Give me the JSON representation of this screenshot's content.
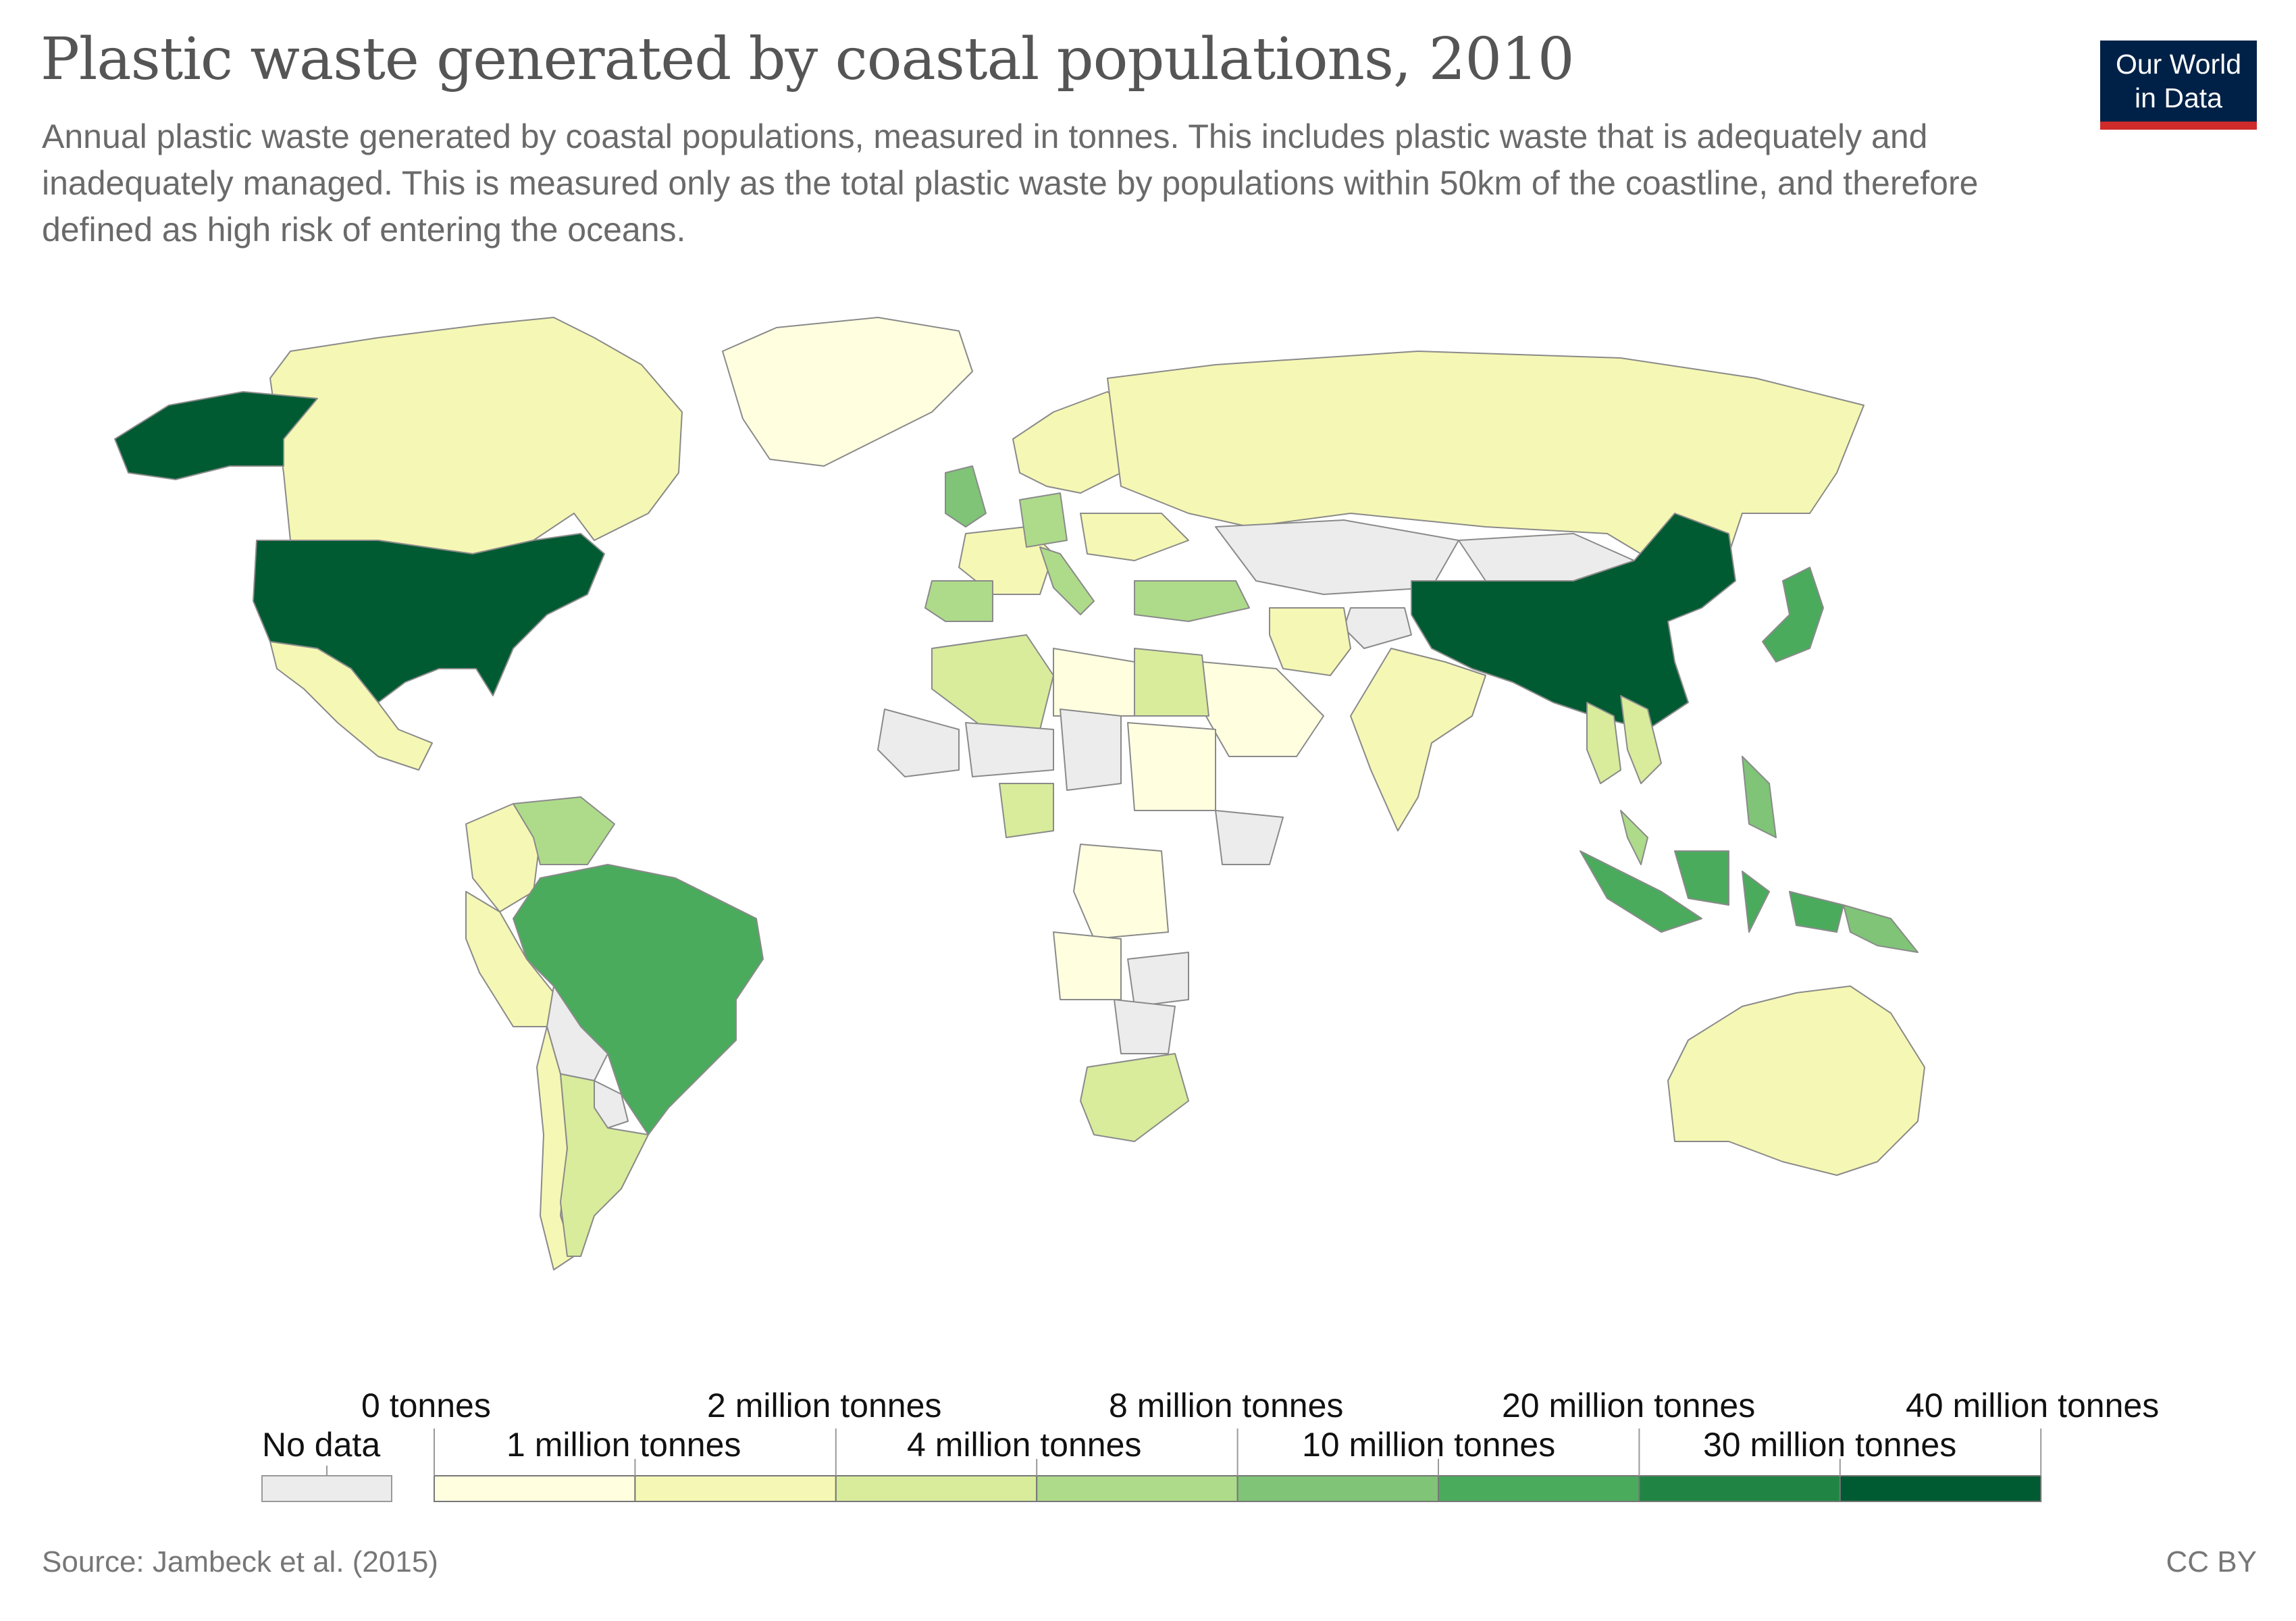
{
  "header": {
    "title": "Plastic waste generated by coastal populations, 2010",
    "subtitle": "Annual plastic waste generated by coastal populations, measured in tonnes. This includes plastic waste that is adequately and inadequately managed. This is measured only as the total plastic waste by populations within 50km of the coastline, and therefore defined as high risk of entering the oceans.",
    "logo_line1": "Our World",
    "logo_line2": "in Data"
  },
  "chart_data": {
    "type": "choropleth",
    "year": 2010,
    "unit": "tonnes",
    "no_data_label": "No data",
    "legend": {
      "labels_top": [
        "0 tonnes",
        "2 million tonnes",
        "8 million tonnes",
        "20 million tonnes",
        "40 million tonnes"
      ],
      "labels_bottom": [
        "1 million tonnes",
        "4 million tonnes",
        "10 million tonnes",
        "30 million tonnes"
      ],
      "bins": [
        0,
        1000000,
        2000000,
        4000000,
        8000000,
        10000000,
        20000000,
        30000000,
        40000000
      ],
      "colors": [
        "#ffffe0",
        "#f5f7b4",
        "#d8ec9c",
        "#aedb8a",
        "#7fc477",
        "#4aab5d",
        "#208544",
        "#005a32"
      ],
      "no_data_color": "#ececec"
    },
    "regions": [
      {
        "name": "China",
        "bin": 7
      },
      {
        "name": "United States",
        "bin": 7
      },
      {
        "name": "Alaska",
        "bin": 7
      },
      {
        "name": "Brazil",
        "bin": 5
      },
      {
        "name": "Indonesia",
        "bin": 5
      },
      {
        "name": "Japan",
        "bin": 5
      },
      {
        "name": "United Kingdom",
        "bin": 4
      },
      {
        "name": "Philippines",
        "bin": 4
      },
      {
        "name": "Papua New Guinea",
        "bin": 4
      },
      {
        "name": "Venezuela",
        "bin": 3
      },
      {
        "name": "Germany",
        "bin": 3
      },
      {
        "name": "Spain",
        "bin": 3
      },
      {
        "name": "Turkey",
        "bin": 3
      },
      {
        "name": "Italy",
        "bin": 3
      },
      {
        "name": "Malaysia",
        "bin": 3
      },
      {
        "name": "Egypt",
        "bin": 2
      },
      {
        "name": "Nigeria",
        "bin": 2
      },
      {
        "name": "Algeria",
        "bin": 2
      },
      {
        "name": "Argentina",
        "bin": 2
      },
      {
        "name": "South Africa",
        "bin": 2
      },
      {
        "name": "Vietnam",
        "bin": 2
      },
      {
        "name": "Thailand",
        "bin": 2
      },
      {
        "name": "Canada",
        "bin": 1
      },
      {
        "name": "Russia",
        "bin": 1
      },
      {
        "name": "India",
        "bin": 1
      },
      {
        "name": "Australia",
        "bin": 1
      },
      {
        "name": "Mexico",
        "bin": 1
      },
      {
        "name": "Iran",
        "bin": 1
      },
      {
        "name": "Peru",
        "bin": 1
      },
      {
        "name": "Chile",
        "bin": 1
      },
      {
        "name": "Colombia",
        "bin": 1
      },
      {
        "name": "France",
        "bin": 1
      },
      {
        "name": "Scandinavia",
        "bin": 1
      },
      {
        "name": "Ukraine",
        "bin": 1
      },
      {
        "name": "Libya",
        "bin": 0
      },
      {
        "name": "Saudi Arabia",
        "bin": 0
      },
      {
        "name": "Sudan",
        "bin": 0
      },
      {
        "name": "DR Congo",
        "bin": 0
      },
      {
        "name": "Angola",
        "bin": 0
      },
      {
        "name": "Greenland",
        "bin": 0
      },
      {
        "name": "Mongolia",
        "bin": null
      },
      {
        "name": "Kazakhstan",
        "bin": null
      },
      {
        "name": "Afghanistan",
        "bin": null
      },
      {
        "name": "Mali",
        "bin": null
      },
      {
        "name": "Niger",
        "bin": null
      },
      {
        "name": "Chad",
        "bin": null
      },
      {
        "name": "Ethiopia",
        "bin": null
      },
      {
        "name": "Bolivia",
        "bin": null
      },
      {
        "name": "Paraguay",
        "bin": null
      },
      {
        "name": "Zambia",
        "bin": null
      },
      {
        "name": "Botswana",
        "bin": null
      }
    ]
  },
  "footer": {
    "source": "Source: Jambeck et al. (2015)",
    "license": "CC BY"
  }
}
